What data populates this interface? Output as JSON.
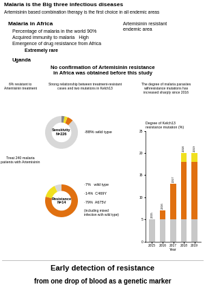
{
  "annotations": [
    "Malaria is the Big three infectious diseases",
    "Artemisinin based combination therapy is the first choice in all endemic areas",
    "Malaria in Africa",
    "Percentage of malaria in the world 90%",
    "Acquired immunity to malaria   High",
    "Emergence of drug resistance from Africa",
    "Extremely rare",
    "Uganda",
    "Artemisinin resistant\nendemic area",
    "No confirmation of Artemisinin resistance\nin Africa was obtained before this study",
    "6% resistant to\nArtemisinin treatment",
    "Strong relationship between treatment-resistant\ncases and two mutations in Kelch13",
    "The degree of malaria parasites\nwithresistance mutations has\nincreased sharply since 2016",
    "Treat 240 malaria\npatients with Artemisinin",
    "Early detection of resistance",
    "from one drop of blood as a genetic marker"
  ],
  "chart_data": [
    {
      "type": "pie",
      "title": "Sensitivity\nN=226",
      "values": [
        88,
        6,
        3,
        3
      ],
      "colors": [
        "#d8d8d8",
        "#e07010",
        "#f0e020",
        "#888888"
      ],
      "annotations": [
        "·88% wild type"
      ]
    },
    {
      "type": "pie",
      "title": "Resistance\nN=14",
      "values": [
        7,
        14,
        79
      ],
      "colors": [
        "#d8d8d8",
        "#f0e020",
        "#e07010"
      ],
      "annotations": [
        "·7%   wild type",
        "·14%  C469Y",
        "·79%  A675V",
        "(including mixed\ninfection with wild type)"
      ]
    },
    {
      "type": "bar",
      "stacked": true,
      "title": "Degree of Kelch13\nresistance mutation (%)",
      "x_label": "Year",
      "categories": [
        "2015",
        "2016",
        "2017",
        "2018",
        "2019"
      ],
      "series": [
        {
          "color": "#c8c8c8",
          "values": [
            5,
            5,
            5,
            5,
            5
          ]
        },
        {
          "color": "#e07010",
          "values": [
            0,
            2,
            8,
            13,
            13
          ]
        },
        {
          "color": "#f0e020",
          "values": [
            0,
            0,
            0,
            2,
            2
          ]
        }
      ],
      "ylim": [
        0,
        25
      ],
      "yticks": [
        0,
        5,
        10,
        15,
        20,
        25
      ]
    }
  ]
}
